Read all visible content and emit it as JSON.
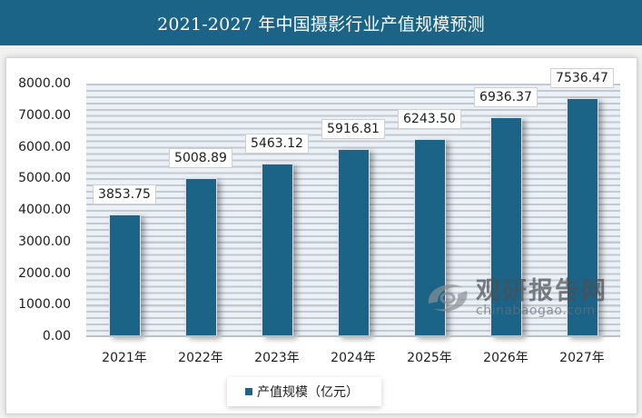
{
  "title": "2021-2027 年中国摄影行业产值规模预测",
  "chart_data": {
    "type": "bar",
    "title": "2021-2027 年中国摄影行业产值规模预测",
    "categories": [
      "2021年",
      "2022年",
      "2023年",
      "2024年",
      "2025年",
      "2026年",
      "2027年"
    ],
    "series": [
      {
        "name": "产值规模（亿元）",
        "color": "#1b6487",
        "values": [
          3853.75,
          5008.89,
          5463.12,
          5916.81,
          6243.5,
          6936.37,
          7536.47
        ]
      }
    ],
    "value_labels": [
      "3853.75",
      "5008.89",
      "5463.12",
      "5916.81",
      "6243.50",
      "6936.37",
      "7536.47"
    ],
    "xlabel": "",
    "ylabel": "",
    "ylim": [
      0,
      8000
    ],
    "yticks": [
      "0.00",
      "1000.00",
      "2000.00",
      "3000.00",
      "4000.00",
      "5000.00",
      "6000.00",
      "7000.00",
      "8000.00"
    ],
    "grid": true,
    "legend_position": "bottom"
  },
  "legend": {
    "label": "产值规模（亿元）"
  },
  "watermark": {
    "cn": "观研报告网",
    "en": "chinabaogao.com"
  },
  "colors": {
    "title_bg": "#1b6487",
    "bar": "#1b6487",
    "plot_bg": "#eaf1f8"
  }
}
